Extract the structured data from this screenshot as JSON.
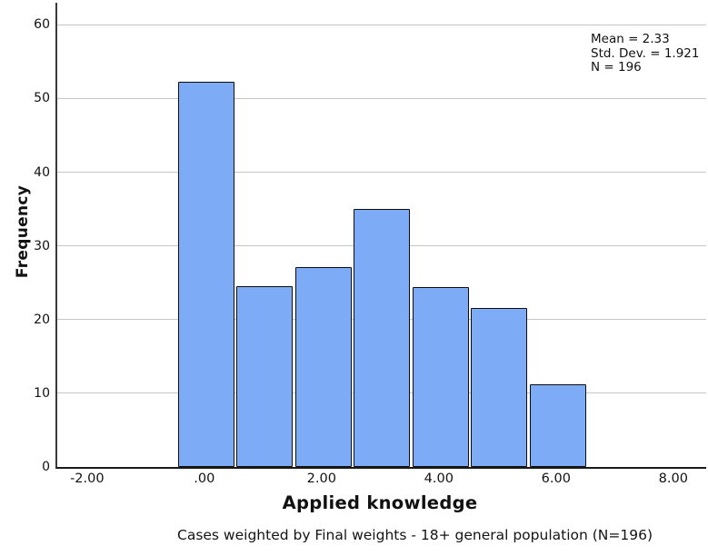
{
  "chart_data": {
    "type": "bar",
    "subtype": "histogram",
    "title": "",
    "xlabel": "Applied knowledge",
    "ylabel": "Frequency",
    "caption": "Cases weighted by Final weights - 18+ general population (N=196)",
    "stats_lines": [
      "Mean = 2.33",
      "Std. Dev. = 1.921",
      "N = 196"
    ],
    "bars": [
      {
        "center": 0,
        "height": 52.3
      },
      {
        "center": 1,
        "height": 24.5
      },
      {
        "center": 2,
        "height": 27.1
      },
      {
        "center": 3,
        "height": 35.0
      },
      {
        "center": 4,
        "height": 24.4
      },
      {
        "center": 5,
        "height": 21.6
      },
      {
        "center": 6,
        "height": 11.2
      }
    ],
    "bin_width": 1.0,
    "x_ticks": [
      {
        "v": -2,
        "label": "-2.00"
      },
      {
        "v": 0,
        "label": ".00"
      },
      {
        "v": 2,
        "label": "2.00"
      },
      {
        "v": 4,
        "label": "4.00"
      },
      {
        "v": 6,
        "label": "6.00"
      },
      {
        "v": 8,
        "label": "8.00"
      }
    ],
    "y_ticks": [
      {
        "v": 0,
        "label": "0"
      },
      {
        "v": 10,
        "label": "10"
      },
      {
        "v": 20,
        "label": "20"
      },
      {
        "v": 30,
        "label": "30"
      },
      {
        "v": 40,
        "label": "40"
      },
      {
        "v": 50,
        "label": "50"
      },
      {
        "v": 60,
        "label": "60"
      }
    ],
    "xlim": [
      -2.54,
      8.53
    ],
    "ylim": [
      0,
      63
    ],
    "grid": true,
    "legend": "none",
    "colors": {
      "bar_fill": "#7dabf5",
      "bar_border": "#0d0d0d",
      "gridline": "#c6c6c6",
      "axis": "#1a1a1a",
      "background": "#ffffff"
    }
  }
}
